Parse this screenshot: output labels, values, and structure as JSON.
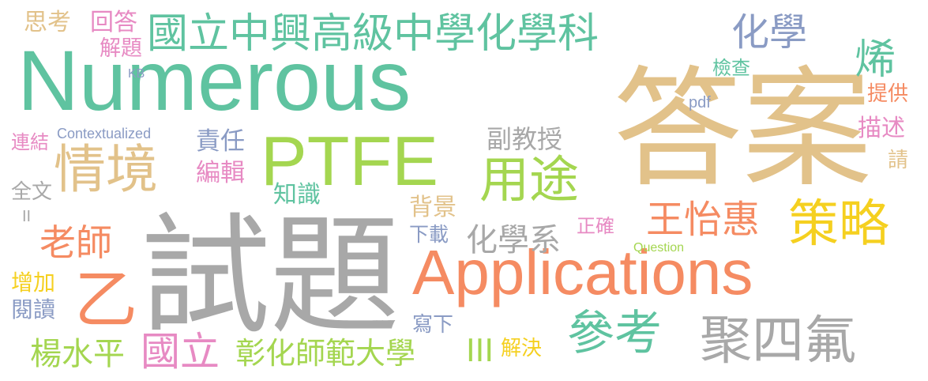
{
  "words": [
    {
      "text": "Numerous",
      "color": "#5fc3a0"
    },
    {
      "text": "答案",
      "color": "#e2c28a"
    },
    {
      "text": "試題",
      "color": "#a8a8a8"
    },
    {
      "text": "Applications",
      "color": "#f58b62"
    },
    {
      "text": "PTFE",
      "color": "#a4d650"
    },
    {
      "text": "國立中興高級中學化學科",
      "color": "#5fc3a0"
    },
    {
      "text": "情境",
      "color": "#e2c28a"
    },
    {
      "text": "用途",
      "color": "#a4d650"
    },
    {
      "text": "策略",
      "color": "#f5d020"
    },
    {
      "text": "聚四氟",
      "color": "#a8a8a8"
    },
    {
      "text": "參考",
      "color": "#5fc3a0"
    },
    {
      "text": "王怡惠",
      "color": "#f58b62"
    },
    {
      "text": "化學",
      "color": "#8a9bc4"
    },
    {
      "text": "烯",
      "color": "#5fc3a0"
    },
    {
      "text": "老師",
      "color": "#f58b62"
    },
    {
      "text": "乙",
      "color": "#f58b62"
    },
    {
      "text": "國立",
      "color": "#e78ac3"
    },
    {
      "text": "彰化師範大學",
      "color": "#a4d650"
    },
    {
      "text": "楊水平",
      "color": "#a4d650"
    },
    {
      "text": "化學系",
      "color": "#a8a8a8"
    },
    {
      "text": "副教授",
      "color": "#a8a8a8"
    },
    {
      "text": "責任",
      "color": "#8a9bc4"
    },
    {
      "text": "編輯",
      "color": "#e78ac3"
    },
    {
      "text": "知識",
      "color": "#5fc3a0"
    },
    {
      "text": "背景",
      "color": "#e2c28a"
    },
    {
      "text": "正確",
      "color": "#e78ac3"
    },
    {
      "text": "下載",
      "color": "#8a9bc4"
    },
    {
      "text": "Question",
      "color": "#a4d650"
    },
    {
      "text": "寫下",
      "color": "#8a9bc4"
    },
    {
      "text": "解決",
      "color": "#f5d020"
    },
    {
      "text": "III",
      "color": "#a4d650"
    },
    {
      "text": "提供",
      "color": "#f58b62"
    },
    {
      "text": "描述",
      "color": "#e78ac3"
    },
    {
      "text": "請",
      "color": "#e2c28a"
    },
    {
      "text": "檢查",
      "color": "#5fc3a0"
    },
    {
      "text": "pdf",
      "color": "#8a9bc4"
    },
    {
      "text": "KB",
      "color": "#8a9bc4"
    },
    {
      "text": "Contextualized",
      "color": "#8a9bc4"
    },
    {
      "text": "思考",
      "color": "#e2c28a"
    },
    {
      "text": "回答",
      "color": "#e78ac3"
    },
    {
      "text": "解題",
      "color": "#e78ac3"
    },
    {
      "text": "連結",
      "color": "#e78ac3"
    },
    {
      "text": "全文",
      "color": "#a8a8a8"
    },
    {
      "text": "II",
      "color": "#a8a8a8"
    },
    {
      "text": "增加",
      "color": "#f5d020"
    },
    {
      "text": "閱讀",
      "color": "#8a9bc4"
    }
  ]
}
